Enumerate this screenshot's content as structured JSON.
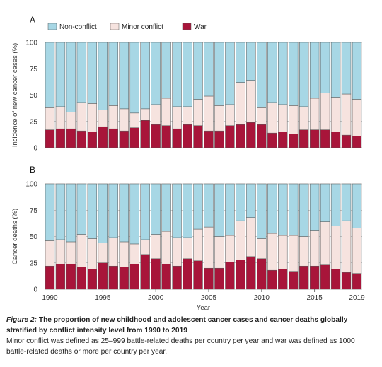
{
  "colors": {
    "non_conflict": "#a7d7e5",
    "minor_conflict": "#f6e3df",
    "war": "#a8153a",
    "grid": "#9a9a9a",
    "bar_stroke": "#555555"
  },
  "chart_data": [
    {
      "type": "bar",
      "stacked": true,
      "panel": "A",
      "ylabel": "Incidence of new cancer cases (%)",
      "xlabel": "",
      "ylim": [
        0,
        100
      ],
      "yticks": [
        0,
        25,
        50,
        75,
        100
      ],
      "x": [
        1990,
        1991,
        1992,
        1993,
        1994,
        1995,
        1996,
        1997,
        1998,
        1999,
        2000,
        2001,
        2002,
        2003,
        2004,
        2005,
        2006,
        2007,
        2008,
        2009,
        2010,
        2011,
        2012,
        2013,
        2014,
        2015,
        2016,
        2017,
        2018,
        2019
      ],
      "legend": {
        "position": "top",
        "entries": [
          "Non-conflict",
          "Minor conflict",
          "War"
        ]
      },
      "series": [
        {
          "name": "War",
          "values": [
            17,
            18,
            18,
            16,
            15,
            20,
            18,
            16,
            19,
            26,
            22,
            21,
            18,
            22,
            21,
            16,
            16,
            21,
            22,
            24,
            22,
            14,
            15,
            13,
            17,
            17,
            17,
            15,
            12,
            11
          ]
        },
        {
          "name": "Minor conflict",
          "values": [
            21,
            21,
            16,
            27,
            27,
            16,
            22,
            21,
            14,
            11,
            19,
            26,
            21,
            17,
            25,
            33,
            24,
            20,
            40,
            40,
            16,
            29,
            26,
            27,
            22,
            30,
            35,
            33,
            39,
            35
          ]
        },
        {
          "name": "Non-conflict",
          "values": [
            62,
            61,
            66,
            57,
            58,
            64,
            60,
            63,
            67,
            63,
            59,
            53,
            61,
            61,
            54,
            51,
            60,
            59,
            38,
            36,
            62,
            57,
            59,
            60,
            61,
            53,
            48,
            52,
            49,
            54
          ]
        }
      ]
    },
    {
      "type": "bar",
      "stacked": true,
      "panel": "B",
      "ylabel": "Cancer deaths (%)",
      "xlabel": "Year",
      "ylim": [
        0,
        100
      ],
      "yticks": [
        0,
        25,
        50,
        75,
        100
      ],
      "x": [
        1990,
        1991,
        1992,
        1993,
        1994,
        1995,
        1996,
        1997,
        1998,
        1999,
        2000,
        2001,
        2002,
        2003,
        2004,
        2005,
        2006,
        2007,
        2008,
        2009,
        2010,
        2011,
        2012,
        2013,
        2014,
        2015,
        2016,
        2017,
        2018,
        2019
      ],
      "xticks": [
        1990,
        1995,
        2000,
        2005,
        2010,
        2015,
        2019
      ],
      "series": [
        {
          "name": "War",
          "values": [
            22,
            24,
            24,
            21,
            19,
            25,
            22,
            21,
            24,
            33,
            29,
            24,
            22,
            29,
            27,
            20,
            20,
            26,
            28,
            31,
            29,
            18,
            19,
            17,
            22,
            22,
            23,
            19,
            16,
            15
          ]
        },
        {
          "name": "Minor conflict",
          "values": [
            24,
            23,
            21,
            31,
            29,
            19,
            27,
            24,
            19,
            14,
            23,
            31,
            27,
            20,
            30,
            39,
            30,
            25,
            37,
            37,
            19,
            35,
            32,
            34,
            28,
            34,
            41,
            41,
            49,
            43
          ]
        },
        {
          "name": "Non-conflict",
          "values": [
            54,
            53,
            55,
            48,
            52,
            56,
            51,
            55,
            57,
            53,
            48,
            45,
            51,
            51,
            43,
            41,
            50,
            49,
            35,
            32,
            52,
            47,
            49,
            49,
            50,
            44,
            36,
            40,
            35,
            42
          ]
        }
      ]
    }
  ],
  "caption": {
    "figure_label": "Figure 2:",
    "title": " The proportion of new childhood and adolescent cancer cases and cancer deaths globally stratified by conflict intensity level from 1990 to 2019",
    "body": "Minor conflict was defined as 25–999 battle-related deaths per country per year and war was defined as 1000 battle-related deaths or more per country per year."
  }
}
